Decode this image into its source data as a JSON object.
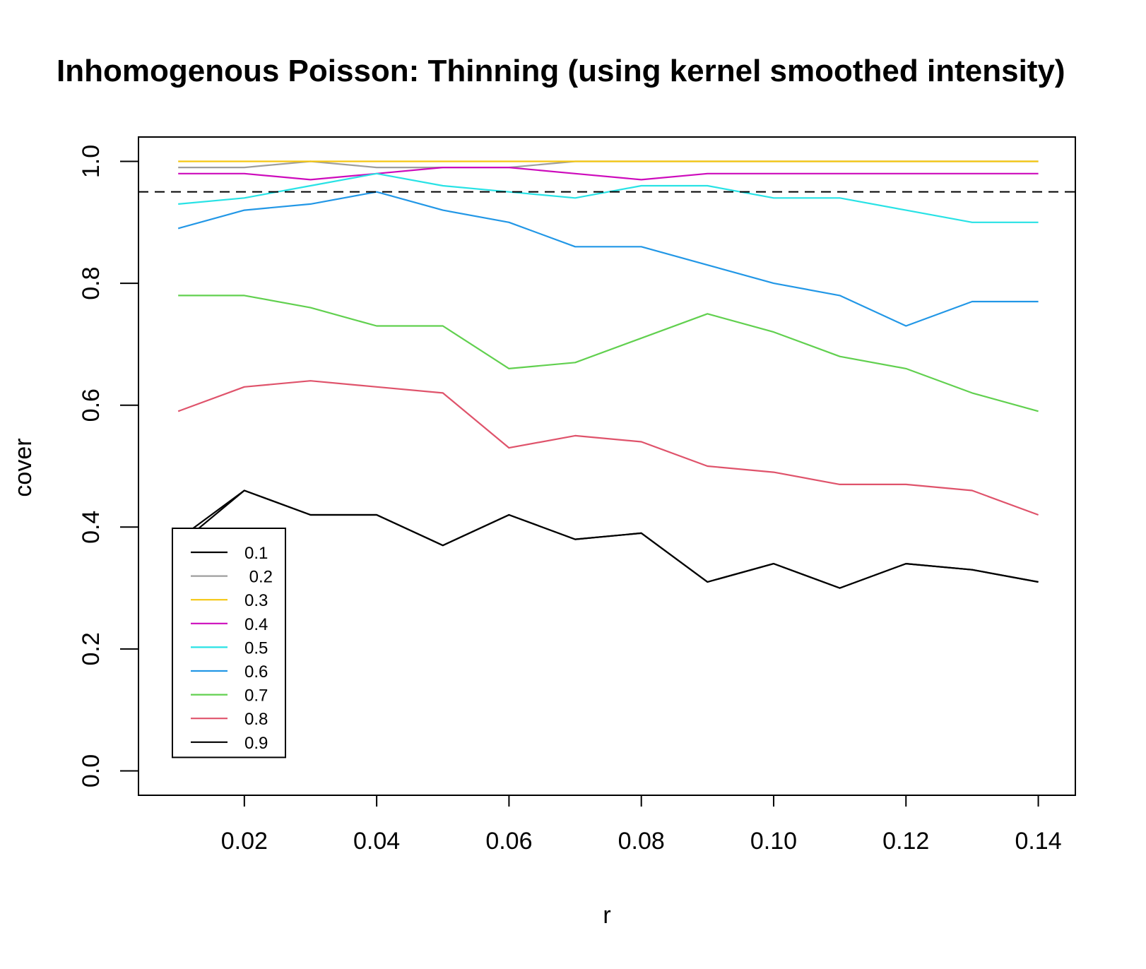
{
  "chart_data": {
    "type": "line",
    "title": "Inhomogenous Poisson: Thinning (using kernel smoothed intensity)",
    "xlabel": "r",
    "ylabel": "cover",
    "x": [
      0.01,
      0.02,
      0.03,
      0.04,
      0.05,
      0.06,
      0.07,
      0.08,
      0.09,
      0.1,
      0.11,
      0.12,
      0.13,
      0.14
    ],
    "xlim": [
      0.004,
      0.1456
    ],
    "ylim": [
      -0.04,
      1.04
    ],
    "x_ticks": [
      0.02,
      0.04,
      0.06,
      0.08,
      0.1,
      0.12,
      0.14
    ],
    "x_tick_labels": [
      "0.02",
      "0.04",
      "0.06",
      "0.08",
      "0.10",
      "0.12",
      "0.14"
    ],
    "y_ticks": [
      0.0,
      0.2,
      0.4,
      0.6,
      0.8,
      1.0
    ],
    "y_tick_labels": [
      "0.0",
      "0.2",
      "0.4",
      "0.6",
      "0.8",
      "1.0"
    ],
    "reference_line": {
      "y": 0.95,
      "style": "dashed",
      "color": "#000000"
    },
    "legend_position": "bottom-left",
    "grid": false,
    "series": [
      {
        "name": "0.1",
        "color": "#000000",
        "values": [
          0.37,
          0.46,
          0.42,
          0.42,
          0.37,
          0.42,
          0.38,
          0.39,
          0.31,
          0.34,
          0.3,
          0.34,
          0.33,
          0.31
        ]
      },
      {
        "name": " 0.2",
        "color": "#9e9e9e",
        "values": [
          0.99,
          0.99,
          1.0,
          0.99,
          0.99,
          0.99,
          1.0,
          1.0,
          1.0,
          1.0,
          1.0,
          1.0,
          1.0,
          1.0
        ]
      },
      {
        "name": "0.3",
        "color": "#f5c710",
        "values": [
          1.0,
          1.0,
          1.0,
          1.0,
          1.0,
          1.0,
          1.0,
          1.0,
          1.0,
          1.0,
          1.0,
          1.0,
          1.0,
          1.0
        ]
      },
      {
        "name": "0.4",
        "color": "#cd0bbc",
        "values": [
          0.98,
          0.98,
          0.97,
          0.98,
          0.99,
          0.99,
          0.98,
          0.97,
          0.98,
          0.98,
          0.98,
          0.98,
          0.98,
          0.98
        ]
      },
      {
        "name": "0.5",
        "color": "#28e2e5",
        "values": [
          0.93,
          0.94,
          0.96,
          0.98,
          0.96,
          0.95,
          0.94,
          0.96,
          0.96,
          0.94,
          0.94,
          0.92,
          0.9,
          0.9
        ]
      },
      {
        "name": "0.6",
        "color": "#2297e6",
        "values": [
          0.89,
          0.92,
          0.93,
          0.95,
          0.92,
          0.9,
          0.86,
          0.86,
          0.83,
          0.8,
          0.78,
          0.73,
          0.77,
          0.77
        ]
      },
      {
        "name": "0.7",
        "color": "#61d04f",
        "values": [
          0.78,
          0.78,
          0.76,
          0.73,
          0.73,
          0.66,
          0.67,
          0.71,
          0.75,
          0.72,
          0.68,
          0.66,
          0.62,
          0.59
        ]
      },
      {
        "name": "0.8",
        "color": "#df536b",
        "values": [
          0.59,
          0.63,
          0.64,
          0.63,
          0.62,
          0.53,
          0.55,
          0.54,
          0.5,
          0.49,
          0.47,
          0.47,
          0.46,
          0.42
        ]
      },
      {
        "name": "0.9",
        "color": "#000000",
        "values": [
          0.38,
          0.46,
          0.42,
          0.42,
          0.37,
          0.42,
          0.38,
          0.39,
          0.31,
          0.34,
          0.3,
          0.34,
          0.33,
          0.31
        ]
      }
    ]
  }
}
